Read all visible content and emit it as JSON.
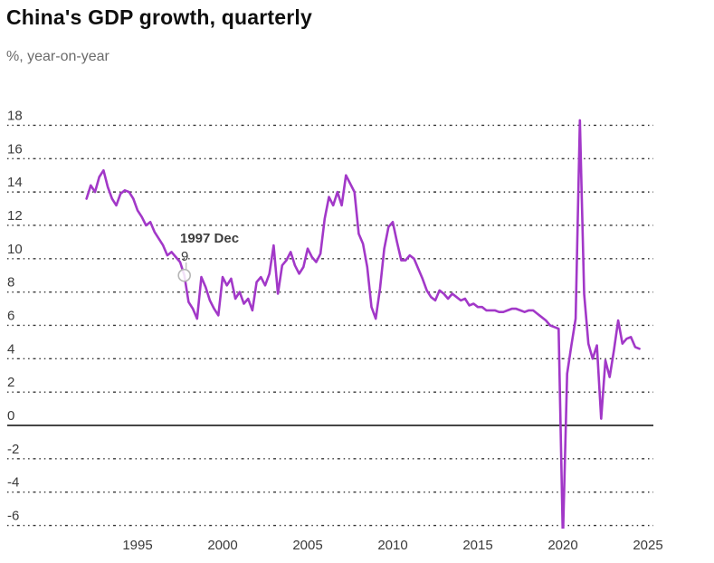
{
  "title": "China's GDP growth, quarterly",
  "subtitle": "%, year-on-year",
  "annotation": {
    "label": "1997 Dec",
    "value_label": "9",
    "year": 1997,
    "quarter": 4,
    "value": 9.0
  },
  "colors": {
    "background": "#ffffff",
    "line": "#a238c8",
    "title": "#0f0f0f",
    "subtitle": "#6b6b6b",
    "axis_label": "#3a3a3a",
    "grid": "#262626",
    "zero_line": "#454545",
    "marker_ring": "#b5b5b5",
    "marker_fill": "#ffffff",
    "annotation_text": "#3d3d3d"
  },
  "chart_data": {
    "type": "line",
    "title": "China's GDP growth, quarterly",
    "ylabel": "%, year-on-year",
    "xlabel": "",
    "grid": "dotted-horizontal",
    "legend": "none",
    "frequency": "quarterly",
    "start_year": 1992,
    "start_quarter": 1,
    "end_year": 2024,
    "end_quarter": 3,
    "x_ticks": [
      1995,
      2000,
      2005,
      2010,
      2015,
      2020,
      2025
    ],
    "y_ticks": [
      18,
      16,
      14,
      12,
      10,
      8,
      6,
      4,
      2,
      0,
      -2,
      -4,
      -6
    ],
    "xlim": [
      1991.3,
      2025.8
    ],
    "ylim": [
      -6.3,
      18.6
    ],
    "series": [
      {
        "name": "GDP growth, % year-on-year",
        "values": [
          13.6,
          14.4,
          14.0,
          14.9,
          15.3,
          14.3,
          13.6,
          13.2,
          13.9,
          14.1,
          14.0,
          13.6,
          12.9,
          12.5,
          12.0,
          12.2,
          11.6,
          11.2,
          10.8,
          10.2,
          10.4,
          10.1,
          9.8,
          9.0,
          7.4,
          7.0,
          6.4,
          8.9,
          8.3,
          7.5,
          7.0,
          6.6,
          8.9,
          8.4,
          8.8,
          7.6,
          8.0,
          7.3,
          7.6,
          6.9,
          8.6,
          8.9,
          8.4,
          9.1,
          10.8,
          7.9,
          9.6,
          9.9,
          10.4,
          9.6,
          9.1,
          9.5,
          10.6,
          10.1,
          9.8,
          10.3,
          12.4,
          13.7,
          13.2,
          14.0,
          13.2,
          15.0,
          14.5,
          14.0,
          11.5,
          10.9,
          9.5,
          7.1,
          6.4,
          8.2,
          10.6,
          11.9,
          12.2,
          11.0,
          9.9,
          9.9,
          10.2,
          10.0,
          9.4,
          8.8,
          8.1,
          7.7,
          7.5,
          8.1,
          7.9,
          7.6,
          7.9,
          7.7,
          7.5,
          7.6,
          7.2,
          7.3,
          7.1,
          7.1,
          6.9,
          6.9,
          6.9,
          6.8,
          6.8,
          6.9,
          7.0,
          7.0,
          6.9,
          6.8,
          6.9,
          6.9,
          6.7,
          6.5,
          6.3,
          6.0,
          5.9,
          5.8,
          -6.9,
          3.1,
          4.8,
          6.4,
          18.3,
          7.9,
          4.9,
          4.0,
          4.8,
          0.4,
          3.9,
          2.9,
          4.5,
          6.3,
          4.9,
          5.2,
          5.3,
          4.7,
          4.6
        ]
      }
    ]
  }
}
